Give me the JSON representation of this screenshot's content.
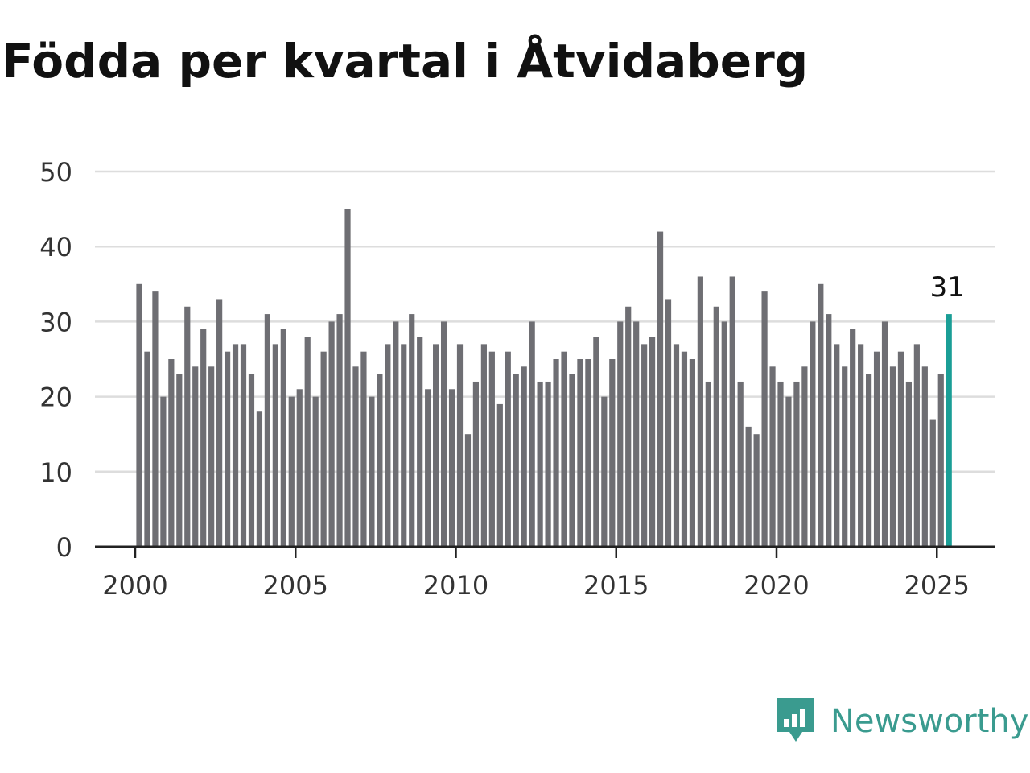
{
  "title": "Födda per kvartal i Åtvidaberg",
  "brand": {
    "name": "Newsworthy",
    "icon": "newsworthy-logo-icon",
    "color": "#3a9b8f"
  },
  "colors": {
    "bar": "#6e6e73",
    "highlight": "#1a9e96",
    "grid": "#dddddd",
    "axis": "#222222"
  },
  "chart_data": {
    "type": "bar",
    "x_ticks": [
      "2000",
      "2005",
      "2010",
      "2015",
      "2020",
      "2025"
    ],
    "y_ticks": [
      "0",
      "10",
      "20",
      "30",
      "40",
      "50"
    ],
    "ylim": [
      0,
      50
    ],
    "grid": true,
    "start_period": "2000 Q1",
    "values": [
      35,
      26,
      34,
      20,
      25,
      23,
      32,
      24,
      29,
      24,
      33,
      26,
      27,
      27,
      23,
      18,
      31,
      27,
      29,
      20,
      21,
      28,
      20,
      26,
      30,
      31,
      45,
      24,
      26,
      20,
      23,
      27,
      30,
      27,
      31,
      28,
      21,
      27,
      30,
      21,
      27,
      15,
      22,
      27,
      26,
      19,
      26,
      23,
      24,
      30,
      22,
      22,
      25,
      26,
      23,
      25,
      25,
      28,
      20,
      25,
      30,
      32,
      30,
      27,
      28,
      42,
      33,
      27,
      26,
      25,
      36,
      22,
      32,
      30,
      36,
      22,
      16,
      15,
      34,
      24,
      22,
      20,
      22,
      24,
      30,
      35,
      31,
      27,
      24,
      29,
      27,
      23,
      26,
      30,
      24,
      26,
      22,
      27,
      24,
      17,
      23,
      31
    ],
    "highlight_last": true,
    "annotation": "31"
  }
}
